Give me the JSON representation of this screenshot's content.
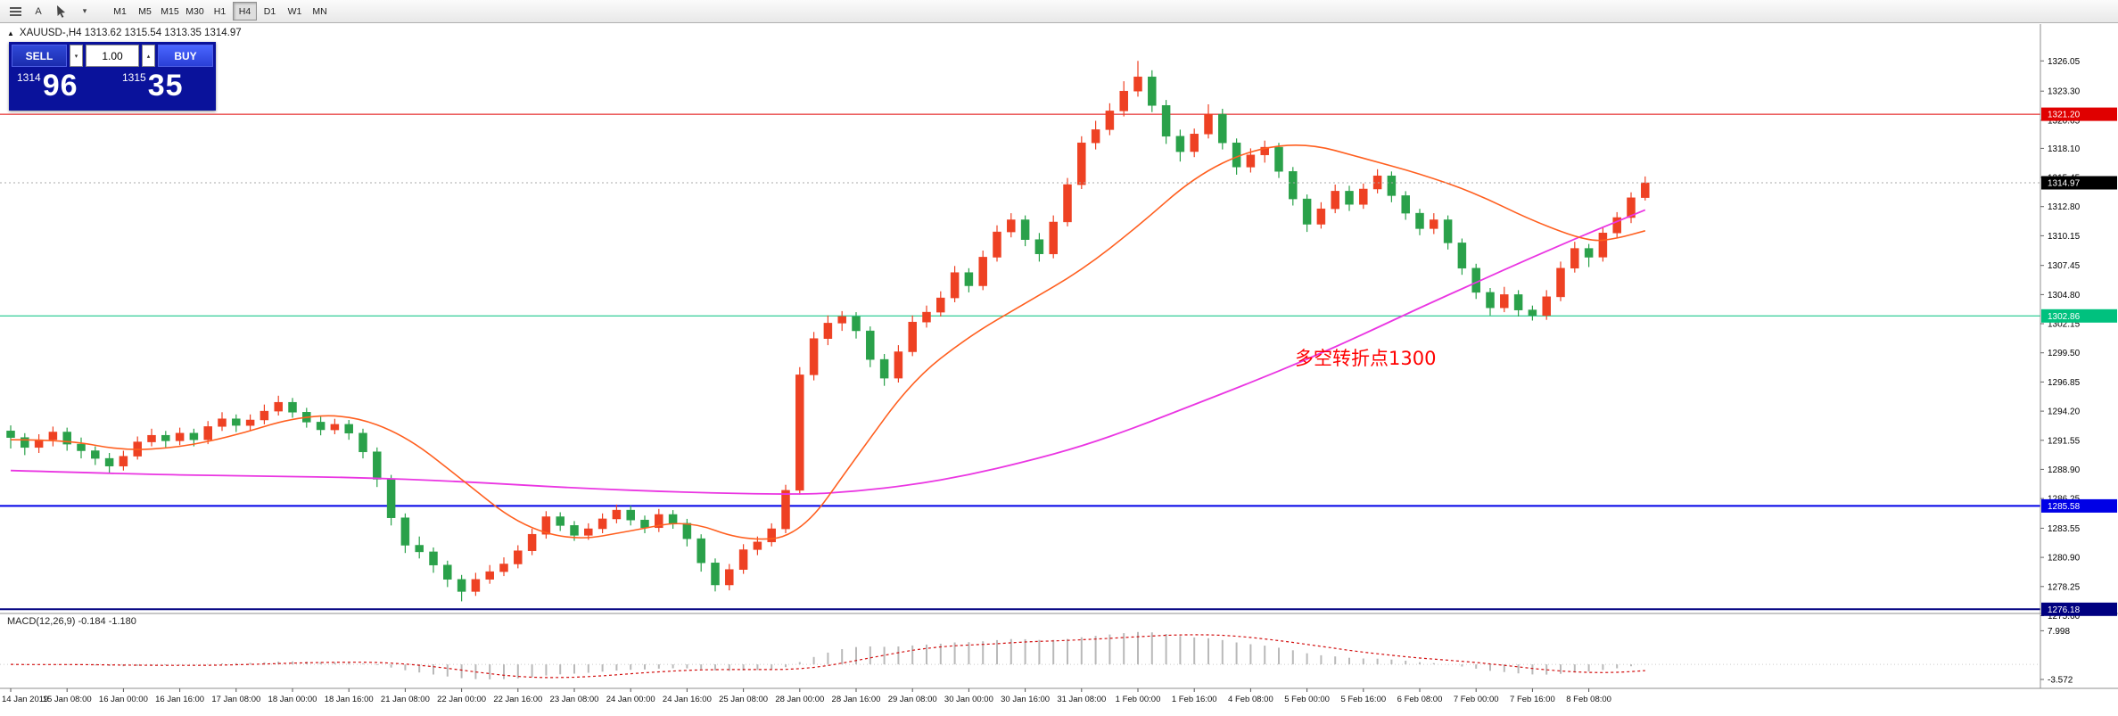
{
  "icons": {
    "chevron_down": "▾",
    "spinner_up": "▴",
    "spinner_down": "▾",
    "marker": "▲"
  },
  "toolbar": {
    "text_tool_label": "A",
    "timeframes": [
      {
        "label": "M1",
        "active": false
      },
      {
        "label": "M5",
        "active": false
      },
      {
        "label": "M15",
        "active": false
      },
      {
        "label": "M30",
        "active": false
      },
      {
        "label": "H1",
        "active": false
      },
      {
        "label": "H4",
        "active": true
      },
      {
        "label": "D1",
        "active": false
      },
      {
        "label": "W1",
        "active": false
      },
      {
        "label": "MN",
        "active": false
      }
    ]
  },
  "chart": {
    "header": "XAUUSD-,H4 1313.62 1315.54 1313.35 1314.97",
    "symbol": "XAUUSD-",
    "timeframe": "H4",
    "open": "1313.62",
    "high": "1315.54",
    "low": "1313.35",
    "close": "1314.97"
  },
  "trade_panel": {
    "sell_label": "SELL",
    "buy_label": "BUY",
    "lot_size": "1.00",
    "sell_price_small": "1314",
    "sell_price_big": "96",
    "buy_price_small": "1315",
    "buy_price_big": "35"
  },
  "annotation": {
    "text": "多空转折点1300",
    "color": "#ff0000"
  },
  "macd": {
    "label": "MACD(12,26,9) -0.184 -1.180"
  },
  "chart_data": {
    "type": "candlestick",
    "symbol": "XAUUSD-",
    "timeframe": "H4",
    "up_color": "#ee4123",
    "down_color": "#2aa14a",
    "price_axis": {
      "max": 1329.4,
      "min": 1275.8,
      "grid_labels": [
        1326.05,
        1323.3,
        1320.65,
        1318.1,
        1315.45,
        1312.8,
        1310.15,
        1307.45,
        1304.8,
        1302.15,
        1299.5,
        1296.85,
        1294.2,
        1291.55,
        1288.9,
        1286.25,
        1283.55,
        1280.9,
        1278.25,
        1275.6
      ]
    },
    "hlines": [
      {
        "price": 1321.2,
        "color": "#e00000",
        "width": 1,
        "label": "1321.20"
      },
      {
        "price": 1302.86,
        "color": "#00c17e",
        "width": 1,
        "label": "1302.86"
      },
      {
        "price": 1285.58,
        "color": "#0000e6",
        "width": 2,
        "label": "1285.58"
      },
      {
        "price": 1276.18,
        "color": "#000080",
        "width": 2,
        "label": "1276.18"
      }
    ],
    "current_price": {
      "value": 1314.97,
      "label": "1314.97",
      "badge_color": "#000000"
    },
    "ma_fast": {
      "color": "#ff5f1f",
      "points": [
        [
          0,
          1291.6
        ],
        [
          4,
          1291.6
        ],
        [
          8,
          1290.6
        ],
        [
          12,
          1290.9
        ],
        [
          16,
          1292.0
        ],
        [
          20,
          1293.6
        ],
        [
          24,
          1293.9
        ],
        [
          28,
          1292.0
        ],
        [
          32,
          1288.0
        ],
        [
          36,
          1283.9
        ],
        [
          40,
          1282.4
        ],
        [
          44,
          1283.3
        ],
        [
          48,
          1284.3
        ],
        [
          52,
          1282.4
        ],
        [
          56,
          1282.8
        ],
        [
          60,
          1290.0
        ],
        [
          64,
          1297.0
        ],
        [
          68,
          1301.0
        ],
        [
          72,
          1304.0
        ],
        [
          76,
          1307.0
        ],
        [
          80,
          1311.0
        ],
        [
          84,
          1315.5
        ],
        [
          88,
          1318.0
        ],
        [
          92,
          1318.6
        ],
        [
          96,
          1317.2
        ],
        [
          100,
          1315.8
        ],
        [
          104,
          1314.0
        ],
        [
          108,
          1311.5
        ],
        [
          112,
          1309.6
        ],
        [
          114,
          1309.9
        ],
        [
          116,
          1310.6
        ]
      ]
    },
    "ma_slow": {
      "color": "#ea36e2",
      "points": [
        [
          0,
          1288.8
        ],
        [
          8,
          1288.5
        ],
        [
          16,
          1288.3
        ],
        [
          24,
          1288.2
        ],
        [
          32,
          1287.8
        ],
        [
          40,
          1287.2
        ],
        [
          48,
          1286.8
        ],
        [
          56,
          1286.6
        ],
        [
          60,
          1286.9
        ],
        [
          64,
          1287.5
        ],
        [
          68,
          1288.4
        ],
        [
          72,
          1289.6
        ],
        [
          76,
          1291.0
        ],
        [
          80,
          1292.8
        ],
        [
          84,
          1294.8
        ],
        [
          88,
          1296.8
        ],
        [
          92,
          1298.9
        ],
        [
          96,
          1301.2
        ],
        [
          100,
          1303.6
        ],
        [
          104,
          1305.9
        ],
        [
          108,
          1308.2
        ],
        [
          112,
          1310.4
        ],
        [
          116,
          1312.5
        ]
      ]
    },
    "macd_axis": {
      "max": 12.1,
      "min": -5.7,
      "labels": [
        {
          "value": 7.998,
          "text": "7.998"
        },
        {
          "value": -3.572,
          "text": "-3.572"
        }
      ],
      "histogram_color": "#b9b9b9",
      "signal_color": "#d20f0f"
    },
    "time_labels": [
      "14 Jan 2019",
      "15 Jan 08:00",
      "16 Jan 00:00",
      "16 Jan 16:00",
      "17 Jan 08:00",
      "18 Jan 00:00",
      "18 Jan 16:00",
      "21 Jan 08:00",
      "22 Jan 00:00",
      "22 Jan 16:00",
      "23 Jan 08:00",
      "24 Jan 00:00",
      "24 Jan 16:00",
      "25 Jan 08:00",
      "28 Jan 00:00",
      "28 Jan 16:00",
      "29 Jan 08:00",
      "30 Jan 00:00",
      "30 Jan 16:00",
      "31 Jan 08:00",
      "1 Feb 00:00",
      "1 Feb 16:00",
      "4 Feb 08:00",
      "5 Feb 00:00",
      "5 Feb 16:00",
      "6 Feb 08:00",
      "7 Feb 00:00",
      "7 Feb 16:00",
      "8 Feb 08:00"
    ],
    "label_every_n_bars": 4,
    "ohlc": [
      [
        1292.4,
        1292.9,
        1290.8,
        1291.8
      ],
      [
        1291.8,
        1292.2,
        1290.2,
        1290.9
      ],
      [
        1290.9,
        1292.1,
        1290.4,
        1291.6
      ],
      [
        1291.6,
        1292.8,
        1291.0,
        1292.3
      ],
      [
        1292.3,
        1292.7,
        1290.6,
        1291.2
      ],
      [
        1291.2,
        1291.8,
        1289.9,
        1290.6
      ],
      [
        1290.6,
        1291.0,
        1289.3,
        1289.9
      ],
      [
        1289.9,
        1290.4,
        1288.6,
        1289.2
      ],
      [
        1289.2,
        1290.6,
        1288.8,
        1290.1
      ],
      [
        1290.1,
        1291.9,
        1289.8,
        1291.4
      ],
      [
        1291.4,
        1292.6,
        1291.0,
        1292.0
      ],
      [
        1292.0,
        1292.4,
        1290.9,
        1291.5
      ],
      [
        1291.5,
        1292.7,
        1291.1,
        1292.2
      ],
      [
        1292.2,
        1292.6,
        1291.0,
        1291.6
      ],
      [
        1291.6,
        1293.3,
        1291.2,
        1292.8
      ],
      [
        1292.8,
        1294.1,
        1292.4,
        1293.5
      ],
      [
        1293.5,
        1293.9,
        1292.3,
        1292.9
      ],
      [
        1292.9,
        1293.9,
        1292.4,
        1293.4
      ],
      [
        1293.4,
        1294.8,
        1293.0,
        1294.2
      ],
      [
        1294.2,
        1295.6,
        1293.8,
        1295.0
      ],
      [
        1295.0,
        1295.4,
        1293.6,
        1294.1
      ],
      [
        1294.1,
        1294.5,
        1292.7,
        1293.2
      ],
      [
        1293.2,
        1293.7,
        1292.0,
        1292.5
      ],
      [
        1292.5,
        1293.5,
        1292.1,
        1293.0
      ],
      [
        1293.0,
        1293.4,
        1291.6,
        1292.2
      ],
      [
        1292.2,
        1292.6,
        1289.9,
        1290.5
      ],
      [
        1290.5,
        1290.9,
        1287.3,
        1288.0
      ],
      [
        1288.0,
        1288.4,
        1283.8,
        1284.5
      ],
      [
        1284.5,
        1284.9,
        1281.3,
        1282.0
      ],
      [
        1282.0,
        1282.8,
        1280.8,
        1281.4
      ],
      [
        1281.4,
        1281.8,
        1279.5,
        1280.2
      ],
      [
        1280.2,
        1280.6,
        1278.2,
        1278.9
      ],
      [
        1278.9,
        1279.3,
        1276.9,
        1277.8
      ],
      [
        1277.8,
        1279.5,
        1277.4,
        1278.9
      ],
      [
        1278.9,
        1280.2,
        1278.5,
        1279.6
      ],
      [
        1279.6,
        1280.9,
        1279.2,
        1280.3
      ],
      [
        1280.3,
        1282.0,
        1279.9,
        1281.5
      ],
      [
        1281.5,
        1283.5,
        1281.1,
        1283.0
      ],
      [
        1283.0,
        1285.1,
        1282.6,
        1284.6
      ],
      [
        1284.6,
        1285.0,
        1283.3,
        1283.8
      ],
      [
        1283.8,
        1284.2,
        1282.4,
        1282.9
      ],
      [
        1282.9,
        1284.0,
        1282.5,
        1283.5
      ],
      [
        1283.5,
        1284.9,
        1283.1,
        1284.4
      ],
      [
        1284.4,
        1285.7,
        1284.0,
        1285.2
      ],
      [
        1285.2,
        1285.6,
        1283.8,
        1284.3
      ],
      [
        1284.3,
        1284.7,
        1283.1,
        1283.6
      ],
      [
        1283.6,
        1285.3,
        1283.2,
        1284.8
      ],
      [
        1284.8,
        1285.2,
        1283.5,
        1284.0
      ],
      [
        1284.0,
        1284.4,
        1281.9,
        1282.6
      ],
      [
        1282.6,
        1283.0,
        1279.6,
        1280.4
      ],
      [
        1280.4,
        1280.8,
        1277.8,
        1278.4
      ],
      [
        1278.4,
        1280.3,
        1277.9,
        1279.8
      ],
      [
        1279.8,
        1282.1,
        1279.4,
        1281.6
      ],
      [
        1281.6,
        1282.8,
        1281.1,
        1282.3
      ],
      [
        1282.3,
        1284.0,
        1281.9,
        1283.5
      ],
      [
        1283.5,
        1287.5,
        1283.1,
        1287.0
      ],
      [
        1287.0,
        1298.2,
        1286.6,
        1297.5
      ],
      [
        1297.5,
        1301.4,
        1297.0,
        1300.8
      ],
      [
        1300.8,
        1302.9,
        1300.2,
        1302.2
      ],
      [
        1302.2,
        1303.3,
        1301.5,
        1302.8
      ],
      [
        1302.8,
        1303.2,
        1300.8,
        1301.5
      ],
      [
        1301.5,
        1301.9,
        1298.2,
        1298.9
      ],
      [
        1298.9,
        1299.4,
        1296.5,
        1297.2
      ],
      [
        1297.2,
        1300.2,
        1296.8,
        1299.6
      ],
      [
        1299.6,
        1302.9,
        1299.2,
        1302.3
      ],
      [
        1302.3,
        1303.8,
        1301.8,
        1303.2
      ],
      [
        1303.2,
        1305.1,
        1302.8,
        1304.5
      ],
      [
        1304.5,
        1307.4,
        1304.1,
        1306.8
      ],
      [
        1306.8,
        1307.2,
        1305.0,
        1305.6
      ],
      [
        1305.6,
        1308.8,
        1305.2,
        1308.2
      ],
      [
        1308.2,
        1311.1,
        1307.8,
        1310.5
      ],
      [
        1310.5,
        1312.2,
        1310.0,
        1311.6
      ],
      [
        1311.6,
        1312.0,
        1309.2,
        1309.8
      ],
      [
        1309.8,
        1310.4,
        1307.8,
        1308.5
      ],
      [
        1308.5,
        1312.0,
        1308.1,
        1311.4
      ],
      [
        1311.4,
        1315.4,
        1311.0,
        1314.8
      ],
      [
        1314.8,
        1319.2,
        1314.4,
        1318.6
      ],
      [
        1318.6,
        1320.6,
        1318.0,
        1319.8
      ],
      [
        1319.8,
        1322.2,
        1319.3,
        1321.5
      ],
      [
        1321.5,
        1324.2,
        1321.0,
        1323.3
      ],
      [
        1323.3,
        1326.05,
        1322.8,
        1324.6
      ],
      [
        1324.6,
        1325.2,
        1321.4,
        1322.0
      ],
      [
        1322.0,
        1322.5,
        1318.5,
        1319.2
      ],
      [
        1319.2,
        1319.8,
        1316.9,
        1317.8
      ],
      [
        1317.8,
        1319.9,
        1317.3,
        1319.4
      ],
      [
        1319.4,
        1322.1,
        1319.0,
        1321.2
      ],
      [
        1321.2,
        1321.7,
        1318.0,
        1318.6
      ],
      [
        1318.6,
        1319.0,
        1315.7,
        1316.4
      ],
      [
        1316.4,
        1318.1,
        1315.9,
        1317.5
      ],
      [
        1317.5,
        1318.8,
        1316.8,
        1318.2
      ],
      [
        1318.2,
        1318.6,
        1315.4,
        1316.0
      ],
      [
        1316.0,
        1316.4,
        1312.9,
        1313.5
      ],
      [
        1313.5,
        1313.9,
        1310.5,
        1311.2
      ],
      [
        1311.2,
        1313.2,
        1310.8,
        1312.6
      ],
      [
        1312.6,
        1314.8,
        1312.2,
        1314.2
      ],
      [
        1314.2,
        1314.7,
        1312.4,
        1313.0
      ],
      [
        1313.0,
        1314.9,
        1312.6,
        1314.4
      ],
      [
        1314.4,
        1316.2,
        1314.0,
        1315.6
      ],
      [
        1315.6,
        1316.0,
        1313.2,
        1313.8
      ],
      [
        1313.8,
        1314.2,
        1311.6,
        1312.2
      ],
      [
        1312.2,
        1312.6,
        1310.2,
        1310.8
      ],
      [
        1310.8,
        1312.2,
        1310.3,
        1311.6
      ],
      [
        1311.6,
        1312.0,
        1308.9,
        1309.5
      ],
      [
        1309.5,
        1309.9,
        1306.6,
        1307.2
      ],
      [
        1307.2,
        1307.6,
        1304.4,
        1305.0
      ],
      [
        1305.0,
        1305.4,
        1302.9,
        1303.6
      ],
      [
        1303.6,
        1305.5,
        1303.2,
        1304.8
      ],
      [
        1304.8,
        1305.2,
        1302.8,
        1303.4
      ],
      [
        1303.4,
        1303.8,
        1302.44,
        1302.9
      ],
      [
        1302.9,
        1305.2,
        1302.5,
        1304.6
      ],
      [
        1304.6,
        1307.8,
        1304.2,
        1307.2
      ],
      [
        1307.2,
        1309.6,
        1306.8,
        1309.0
      ],
      [
        1309.0,
        1309.4,
        1307.3,
        1308.2
      ],
      [
        1308.2,
        1310.9,
        1307.8,
        1310.4
      ],
      [
        1310.4,
        1312.3,
        1309.9,
        1311.8
      ],
      [
        1311.8,
        1314.1,
        1311.3,
        1313.6
      ],
      [
        1313.62,
        1315.54,
        1313.35,
        1314.97
      ]
    ]
  }
}
